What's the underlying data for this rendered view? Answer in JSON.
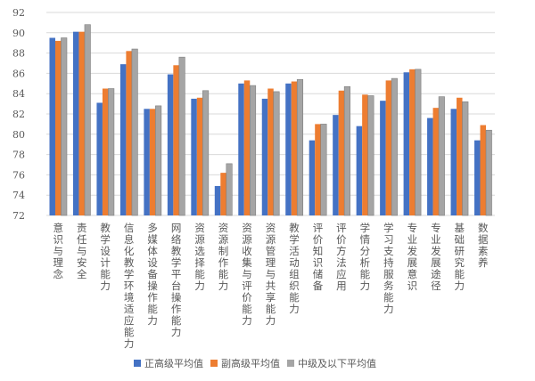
{
  "chart_data": {
    "type": "bar",
    "title": "",
    "xlabel": "",
    "ylabel": "",
    "ylim": [
      72,
      92
    ],
    "yticks": [
      72,
      74,
      76,
      78,
      80,
      82,
      84,
      86,
      88,
      90,
      92
    ],
    "grid": true,
    "legend_position": "bottom",
    "categories": [
      "意识与理念",
      "责任与安全",
      "教学设计能力",
      "信息化教学环境适应能力",
      "多媒体设备操作能力",
      "网络教学平台操作能力",
      "资源选择能力",
      "资源制作能力",
      "资源收集与评价能力",
      "资源管理与共享能力",
      "教学活动组织能力",
      "评价知识储备",
      "评价方法应用",
      "学情分析能力",
      "学习支持服务能力",
      "专业发展意识",
      "专业发展途径",
      "基础研究能力",
      "数据素养"
    ],
    "series": [
      {
        "name": "正高级平均值",
        "color": "#4472C4",
        "values": [
          89.5,
          90.1,
          83.1,
          86.9,
          82.5,
          85.9,
          83.5,
          74.9,
          85.0,
          83.5,
          85.0,
          79.4,
          81.9,
          80.8,
          83.3,
          86.1,
          81.6,
          82.5,
          79.4
        ]
      },
      {
        "name": "副高级平均值",
        "color": "#ED7D31",
        "values": [
          89.2,
          90.1,
          84.5,
          88.2,
          82.5,
          86.8,
          83.6,
          76.2,
          85.3,
          84.5,
          85.2,
          81.0,
          84.3,
          83.9,
          85.3,
          86.4,
          82.6,
          83.6,
          80.9
        ]
      },
      {
        "name": "中级及以下平均值",
        "color": "#A5A5A5",
        "values": [
          89.5,
          90.8,
          84.5,
          88.4,
          82.8,
          87.6,
          84.3,
          77.1,
          84.8,
          84.2,
          85.4,
          81.0,
          84.7,
          83.8,
          85.5,
          86.4,
          83.7,
          83.2,
          80.4
        ]
      }
    ]
  }
}
